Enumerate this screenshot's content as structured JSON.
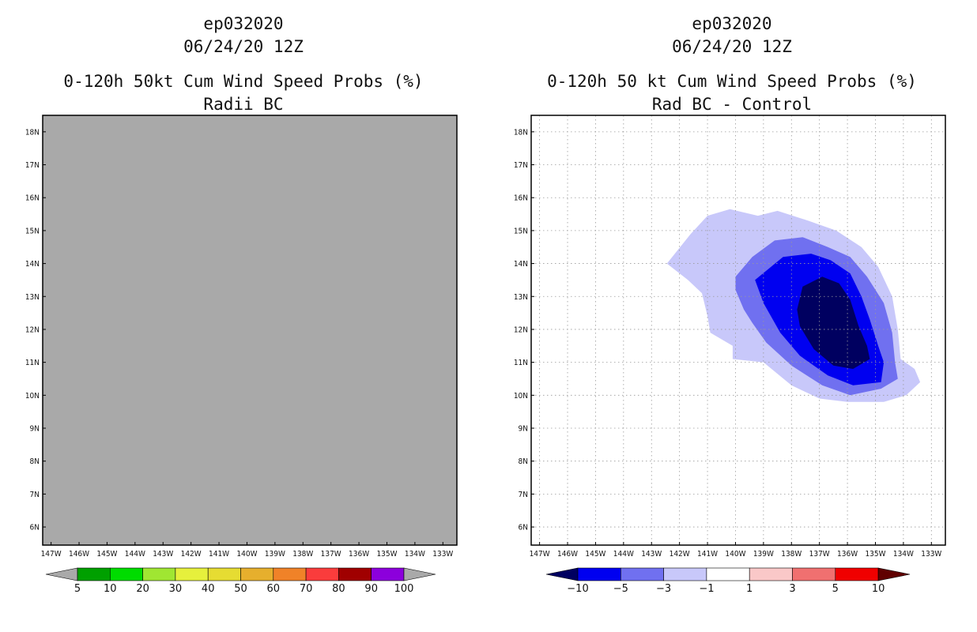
{
  "chart_data": [
    {
      "type": "heatmap",
      "storm_id": "ep032020",
      "date": "06/24/20 12Z",
      "title": "0-120h 50kt Cum Wind Speed Probs (%)",
      "subtitle": "Radii BC",
      "xlabel": "",
      "ylabel": "",
      "xlim": [
        147.3,
        132.5
      ],
      "ylim": [
        5.45,
        18.5
      ],
      "grid": false,
      "x_ticks": [
        "147W",
        "146W",
        "145W",
        "144W",
        "143W",
        "142W",
        "141W",
        "140W",
        "139W",
        "138W",
        "137W",
        "136W",
        "135W",
        "134W",
        "133W"
      ],
      "y_ticks": [
        "6N",
        "7N",
        "8N",
        "9N",
        "10N",
        "11N",
        "12N",
        "13N",
        "14N",
        "15N",
        "16N",
        "17N",
        "18N"
      ],
      "field": "no data (uniform missing)",
      "fill_color": "#a9a9a9",
      "colorbar": {
        "labels": [
          "5",
          "10",
          "20",
          "30",
          "40",
          "50",
          "60",
          "70",
          "80",
          "90",
          "100"
        ],
        "colors": [
          "#00a000",
          "#00dc00",
          "#a0e632",
          "#e6f03c",
          "#e6dc32",
          "#e6af2d",
          "#f08228",
          "#fa3c3c",
          "#a00000",
          "#8c00dc"
        ],
        "under_color": "#a9a9a9",
        "over_color": "#a9a9a9"
      }
    },
    {
      "type": "heatmap",
      "storm_id": "ep032020",
      "date": "06/24/20 12Z",
      "title": "0-120h 50 kt Cum Wind Speed Probs (%)",
      "subtitle": "Rad BC - Control",
      "xlabel": "",
      "ylabel": "",
      "xlim": [
        147.3,
        132.5
      ],
      "ylim": [
        5.45,
        18.5
      ],
      "grid": true,
      "x_ticks": [
        "147W",
        "146W",
        "145W",
        "144W",
        "143W",
        "142W",
        "141W",
        "140W",
        "139W",
        "138W",
        "137W",
        "136W",
        "135W",
        "134W",
        "133W"
      ],
      "y_ticks": [
        "6N",
        "7N",
        "8N",
        "9N",
        "10N",
        "11N",
        "12N",
        "13N",
        "14N",
        "15N",
        "16N",
        "17N",
        "18N"
      ],
      "contours": [
        {
          "level": "-3 to -1",
          "color": "#c8c8fa",
          "points": [
            [
              142.45,
              14.0
            ],
            [
              141.6,
              14.9
            ],
            [
              141.0,
              15.45
            ],
            [
              140.2,
              15.65
            ],
            [
              139.2,
              15.45
            ],
            [
              138.5,
              15.6
            ],
            [
              137.4,
              15.3
            ],
            [
              136.4,
              15.0
            ],
            [
              135.5,
              14.5
            ],
            [
              134.9,
              13.9
            ],
            [
              134.4,
              13.0
            ],
            [
              134.2,
              12.0
            ],
            [
              134.1,
              11.1
            ],
            [
              133.6,
              10.8
            ],
            [
              133.4,
              10.4
            ],
            [
              133.9,
              10.0
            ],
            [
              134.7,
              9.8
            ],
            [
              136.0,
              9.8
            ],
            [
              137.0,
              9.9
            ],
            [
              138.0,
              10.3
            ],
            [
              139.0,
              11.0
            ],
            [
              140.1,
              11.1
            ],
            [
              140.1,
              11.5
            ],
            [
              140.9,
              11.9
            ],
            [
              141.0,
              12.4
            ],
            [
              141.2,
              13.1
            ],
            [
              141.7,
              13.5
            ]
          ]
        },
        {
          "level": "-5 to -3",
          "color": "#7070f0",
          "points": [
            [
              140.0,
              13.6
            ],
            [
              139.4,
              14.2
            ],
            [
              138.6,
              14.7
            ],
            [
              137.6,
              14.8
            ],
            [
              136.7,
              14.5
            ],
            [
              135.9,
              14.2
            ],
            [
              135.3,
              13.6
            ],
            [
              134.7,
              12.8
            ],
            [
              134.4,
              11.9
            ],
            [
              134.3,
              11.0
            ],
            [
              134.2,
              10.5
            ],
            [
              134.8,
              10.2
            ],
            [
              135.9,
              10.0
            ],
            [
              136.9,
              10.3
            ],
            [
              138.0,
              10.9
            ],
            [
              138.9,
              11.6
            ],
            [
              139.4,
              12.2
            ],
            [
              139.7,
              12.6
            ],
            [
              140.0,
              13.2
            ]
          ]
        },
        {
          "level": "-10 to -5",
          "color": "#0000f0",
          "points": [
            [
              139.3,
              13.5
            ],
            [
              138.3,
              14.2
            ],
            [
              137.3,
              14.3
            ],
            [
              136.6,
              14.1
            ],
            [
              135.9,
              13.7
            ],
            [
              135.5,
              13.0
            ],
            [
              135.2,
              12.3
            ],
            [
              134.9,
              11.5
            ],
            [
              134.7,
              11.0
            ],
            [
              134.8,
              10.4
            ],
            [
              135.8,
              10.3
            ],
            [
              136.7,
              10.6
            ],
            [
              137.7,
              11.2
            ],
            [
              138.4,
              11.9
            ],
            [
              139.0,
              12.8
            ]
          ]
        },
        {
          "level": "< -10",
          "color": "#000060",
          "points": [
            [
              137.6,
              13.3
            ],
            [
              136.9,
              13.6
            ],
            [
              136.3,
              13.4
            ],
            [
              135.9,
              12.9
            ],
            [
              135.6,
              12.1
            ],
            [
              135.3,
              11.5
            ],
            [
              135.2,
              11.1
            ],
            [
              135.8,
              10.8
            ],
            [
              136.5,
              10.9
            ],
            [
              137.2,
              11.4
            ],
            [
              137.7,
              12.1
            ],
            [
              137.8,
              12.6
            ]
          ]
        }
      ],
      "colorbar": {
        "labels": [
          "-10",
          "-5",
          "-3",
          "-1",
          "1",
          "3",
          "5",
          "10"
        ],
        "colors": [
          "#0000f0",
          "#7070f0",
          "#c8c8fa",
          "#ffffff",
          "#fac8c8",
          "#f07070",
          "#f00000"
        ],
        "under_color": "#000060",
        "over_color": "#600000"
      }
    }
  ]
}
